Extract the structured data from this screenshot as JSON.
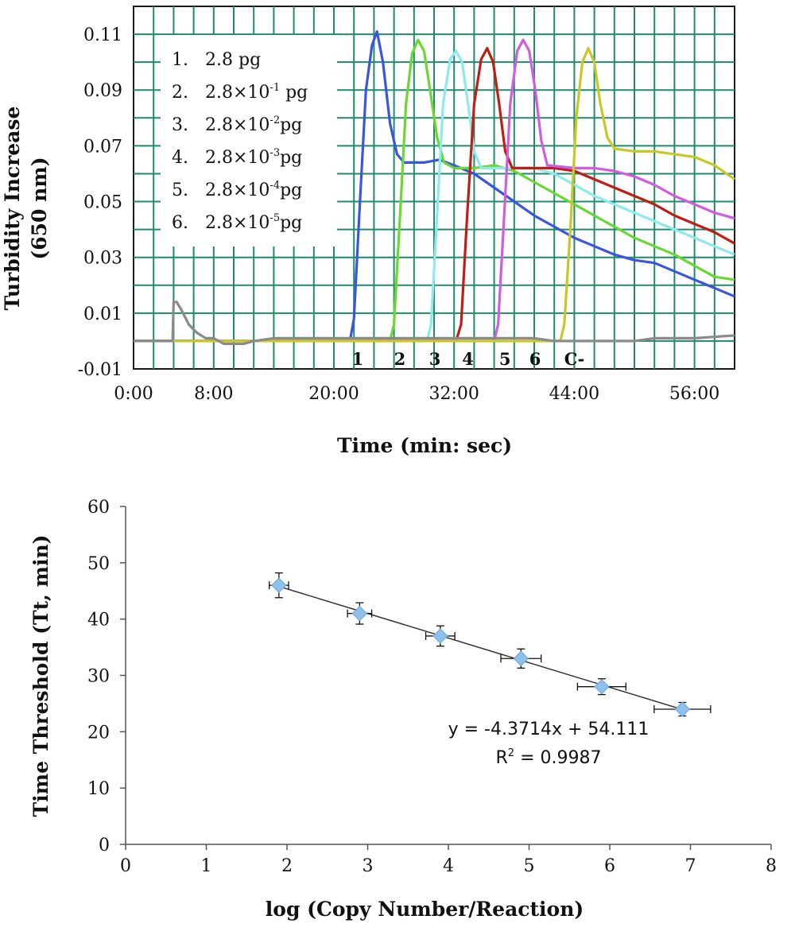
{
  "chart_data": [
    {
      "type": "line",
      "ylabel": [
        "Turbidity Increase",
        "(650 nm)"
      ],
      "xlabel": "Time (min: sec)",
      "xlim": [
        0,
        60
      ],
      "ylim": [
        -0.01,
        0.12
      ],
      "x_ticks": [
        0,
        8,
        20,
        32,
        44,
        56
      ],
      "x_tick_labels": [
        "0:00",
        "8:00",
        "20:00",
        "32:00",
        "44:00",
        "56:00"
      ],
      "y_ticks": [
        -0.01,
        0.01,
        0.03,
        0.05,
        0.07,
        0.09,
        0.11
      ],
      "y_tick_labels": [
        "-0.01",
        "0.01",
        "0.03",
        "0.05",
        "0.07",
        "0.09",
        "0.11"
      ],
      "grid": true,
      "legend_position": "top-left",
      "legend": [
        {
          "num": "1.",
          "base": "2.8 pg",
          "exp": "",
          "unit": ""
        },
        {
          "num": "2.",
          "base": "2.8×10",
          "exp": "-1",
          "unit": " pg"
        },
        {
          "num": "3.",
          "base": "2.8×10",
          "exp": "-2",
          "unit": "pg"
        },
        {
          "num": "4.",
          "base": "2.8×10",
          "exp": "-3",
          "unit": "pg"
        },
        {
          "num": "5.",
          "base": "2.8×10",
          "exp": "-4",
          "unit": "pg"
        },
        {
          "num": "6.",
          "base": "2.8×10",
          "exp": "-5",
          "unit": "pg"
        }
      ],
      "curve_labels": [
        {
          "text": "1",
          "x": 21.8
        },
        {
          "text": "2",
          "x": 26.0
        },
        {
          "text": "3",
          "x": 29.5
        },
        {
          "text": "4",
          "x": 32.8
        },
        {
          "text": "5",
          "x": 36.5
        },
        {
          "text": "6",
          "x": 39.5
        },
        {
          "text": "C-",
          "x": 43.0
        }
      ],
      "series": [
        {
          "key": "s1",
          "color": "#3a55e0",
          "points": [
            [
              0,
              0
            ],
            [
              21.6,
              0
            ],
            [
              22,
              0.008
            ],
            [
              22.6,
              0.05
            ],
            [
              23.2,
              0.09
            ],
            [
              23.8,
              0.106
            ],
            [
              24.3,
              0.111
            ],
            [
              24.9,
              0.1
            ],
            [
              25.6,
              0.078
            ],
            [
              26.3,
              0.067
            ],
            [
              27,
              0.064
            ],
            [
              29,
              0.064
            ],
            [
              30.5,
              0.065
            ],
            [
              32,
              0.063
            ],
            [
              34,
              0.06
            ],
            [
              36,
              0.055
            ],
            [
              38,
              0.05
            ],
            [
              40,
              0.045
            ],
            [
              42,
              0.041
            ],
            [
              44,
              0.037
            ],
            [
              46,
              0.034
            ],
            [
              48,
              0.031
            ],
            [
              50,
              0.029
            ],
            [
              52,
              0.028
            ],
            [
              54,
              0.025
            ],
            [
              56,
              0.022
            ],
            [
              58,
              0.019
            ],
            [
              60,
              0.016
            ]
          ]
        },
        {
          "key": "s2",
          "color": "#6ad832",
          "points": [
            [
              0,
              0
            ],
            [
              25.6,
              0
            ],
            [
              26,
              0.006
            ],
            [
              26.6,
              0.045
            ],
            [
              27.2,
              0.085
            ],
            [
              27.8,
              0.103
            ],
            [
              28.4,
              0.108
            ],
            [
              29,
              0.104
            ],
            [
              29.6,
              0.09
            ],
            [
              30.3,
              0.073
            ],
            [
              31,
              0.064
            ],
            [
              32,
              0.062
            ],
            [
              34,
              0.062
            ],
            [
              36,
              0.063
            ],
            [
              38,
              0.061
            ],
            [
              40,
              0.057
            ],
            [
              42,
              0.053
            ],
            [
              44,
              0.049
            ],
            [
              46,
              0.045
            ],
            [
              48,
              0.041
            ],
            [
              50,
              0.037
            ],
            [
              52,
              0.034
            ],
            [
              54,
              0.031
            ],
            [
              56,
              0.027
            ],
            [
              58,
              0.023
            ],
            [
              60,
              0.022
            ]
          ]
        },
        {
          "key": "s3",
          "color": "#8eeaea",
          "points": [
            [
              0,
              0
            ],
            [
              29.3,
              0
            ],
            [
              29.7,
              0.006
            ],
            [
              30.3,
              0.045
            ],
            [
              30.9,
              0.085
            ],
            [
              31.6,
              0.101
            ],
            [
              32.2,
              0.104
            ],
            [
              32.8,
              0.1
            ],
            [
              33.4,
              0.085
            ],
            [
              34,
              0.068
            ],
            [
              34.7,
              0.062
            ],
            [
              36,
              0.062
            ],
            [
              38,
              0.062
            ],
            [
              40,
              0.062
            ],
            [
              42,
              0.06
            ],
            [
              44,
              0.056
            ],
            [
              46,
              0.052
            ],
            [
              48,
              0.049
            ],
            [
              50,
              0.046
            ],
            [
              52,
              0.043
            ],
            [
              54,
              0.04
            ],
            [
              56,
              0.037
            ],
            [
              58,
              0.034
            ],
            [
              60,
              0.031
            ]
          ]
        },
        {
          "key": "s4",
          "color": "#c01e14",
          "points": [
            [
              0,
              0
            ],
            [
              32.2,
              0
            ],
            [
              32.7,
              0.006
            ],
            [
              33.3,
              0.045
            ],
            [
              34,
              0.085
            ],
            [
              34.7,
              0.101
            ],
            [
              35.3,
              0.105
            ],
            [
              35.9,
              0.1
            ],
            [
              36.5,
              0.085
            ],
            [
              37.1,
              0.068
            ],
            [
              37.8,
              0.062
            ],
            [
              40,
              0.062
            ],
            [
              42,
              0.062
            ],
            [
              44,
              0.061
            ],
            [
              46,
              0.058
            ],
            [
              48,
              0.055
            ],
            [
              50,
              0.052
            ],
            [
              52,
              0.049
            ],
            [
              54,
              0.045
            ],
            [
              56,
              0.042
            ],
            [
              58,
              0.039
            ],
            [
              60,
              0.035
            ]
          ]
        },
        {
          "key": "s5",
          "color": "#d05ce0",
          "points": [
            [
              0,
              0
            ],
            [
              36,
              0
            ],
            [
              36.4,
              0.006
            ],
            [
              37,
              0.045
            ],
            [
              37.6,
              0.085
            ],
            [
              38.3,
              0.104
            ],
            [
              38.9,
              0.108
            ],
            [
              39.5,
              0.104
            ],
            [
              40.1,
              0.09
            ],
            [
              40.7,
              0.072
            ],
            [
              41.3,
              0.063
            ],
            [
              44,
              0.062
            ],
            [
              46,
              0.062
            ],
            [
              48,
              0.061
            ],
            [
              50,
              0.059
            ],
            [
              52,
              0.056
            ],
            [
              54,
              0.052
            ],
            [
              56,
              0.049
            ],
            [
              58,
              0.046
            ],
            [
              60,
              0.044
            ]
          ]
        },
        {
          "key": "s6",
          "color": "#c8c824",
          "points": [
            [
              0,
              0
            ],
            [
              42.6,
              0
            ],
            [
              43,
              0.006
            ],
            [
              43.6,
              0.04
            ],
            [
              44.2,
              0.08
            ],
            [
              44.8,
              0.1
            ],
            [
              45.4,
              0.105
            ],
            [
              46,
              0.1
            ],
            [
              46.6,
              0.085
            ],
            [
              47.3,
              0.073
            ],
            [
              48,
              0.069
            ],
            [
              50,
              0.068
            ],
            [
              52,
              0.068
            ],
            [
              54,
              0.067
            ],
            [
              56,
              0.066
            ],
            [
              58,
              0.063
            ],
            [
              60,
              0.058
            ]
          ]
        },
        {
          "key": "c-",
          "color": "#8a8a8a",
          "points": [
            [
              0,
              0
            ],
            [
              3.9,
              0
            ],
            [
              4,
              0.014
            ],
            [
              4.3,
              0.014
            ],
            [
              4.8,
              0.011
            ],
            [
              5.5,
              0.006
            ],
            [
              6.3,
              0.003
            ],
            [
              7.2,
              0.001
            ],
            [
              8,
              0.001
            ],
            [
              9,
              -0.001
            ],
            [
              10,
              -0.001
            ],
            [
              11,
              -0.001
            ],
            [
              12,
              0
            ],
            [
              14,
              0.001
            ],
            [
              18,
              0.001
            ],
            [
              22,
              0.001
            ],
            [
              26,
              0.001
            ],
            [
              30,
              0.001
            ],
            [
              34,
              0.001
            ],
            [
              38,
              0.001
            ],
            [
              40,
              0.001
            ],
            [
              42,
              0
            ],
            [
              44,
              0
            ],
            [
              48,
              0
            ],
            [
              50,
              0
            ],
            [
              52,
              0.001
            ],
            [
              56,
              0.001
            ],
            [
              60,
              0.002
            ]
          ]
        }
      ]
    },
    {
      "type": "scatter",
      "ylabel": "Time Threshold (Tt, min)",
      "xlabel": "log (Copy Number/Reaction)",
      "xlim": [
        0,
        8
      ],
      "ylim": [
        0,
        60
      ],
      "x_ticks": [
        0,
        1,
        2,
        3,
        4,
        5,
        6,
        7,
        8
      ],
      "x_tick_labels": [
        "0",
        "1",
        "2",
        "3",
        "4",
        "5",
        "6",
        "7",
        "8"
      ],
      "y_ticks": [
        0,
        10,
        20,
        30,
        40,
        50,
        60
      ],
      "y_tick_labels": [
        "0",
        "10",
        "20",
        "30",
        "40",
        "50",
        "60"
      ],
      "grid": false,
      "marker_color": "#8ec0ec",
      "points": [
        {
          "x": 1.9,
          "y": 46,
          "xerr": 0.12,
          "yerr": 2.2
        },
        {
          "x": 2.9,
          "y": 41,
          "xerr": 0.15,
          "yerr": 1.9
        },
        {
          "x": 3.9,
          "y": 37,
          "xerr": 0.18,
          "yerr": 1.8
        },
        {
          "x": 4.9,
          "y": 33,
          "xerr": 0.25,
          "yerr": 1.7
        },
        {
          "x": 5.9,
          "y": 28,
          "xerr": 0.3,
          "yerr": 1.4
        },
        {
          "x": 6.9,
          "y": 24,
          "xerr": 0.35,
          "yerr": 1.2
        }
      ],
      "trendline": {
        "slope": -4.3714,
        "intercept": 54.111,
        "x_range": [
          1.9,
          6.9
        ]
      },
      "equation": "y = -4.3714x + 54.111",
      "r2": {
        "base": "R",
        "exp": "2",
        "rest": " = 0.9987"
      }
    }
  ]
}
